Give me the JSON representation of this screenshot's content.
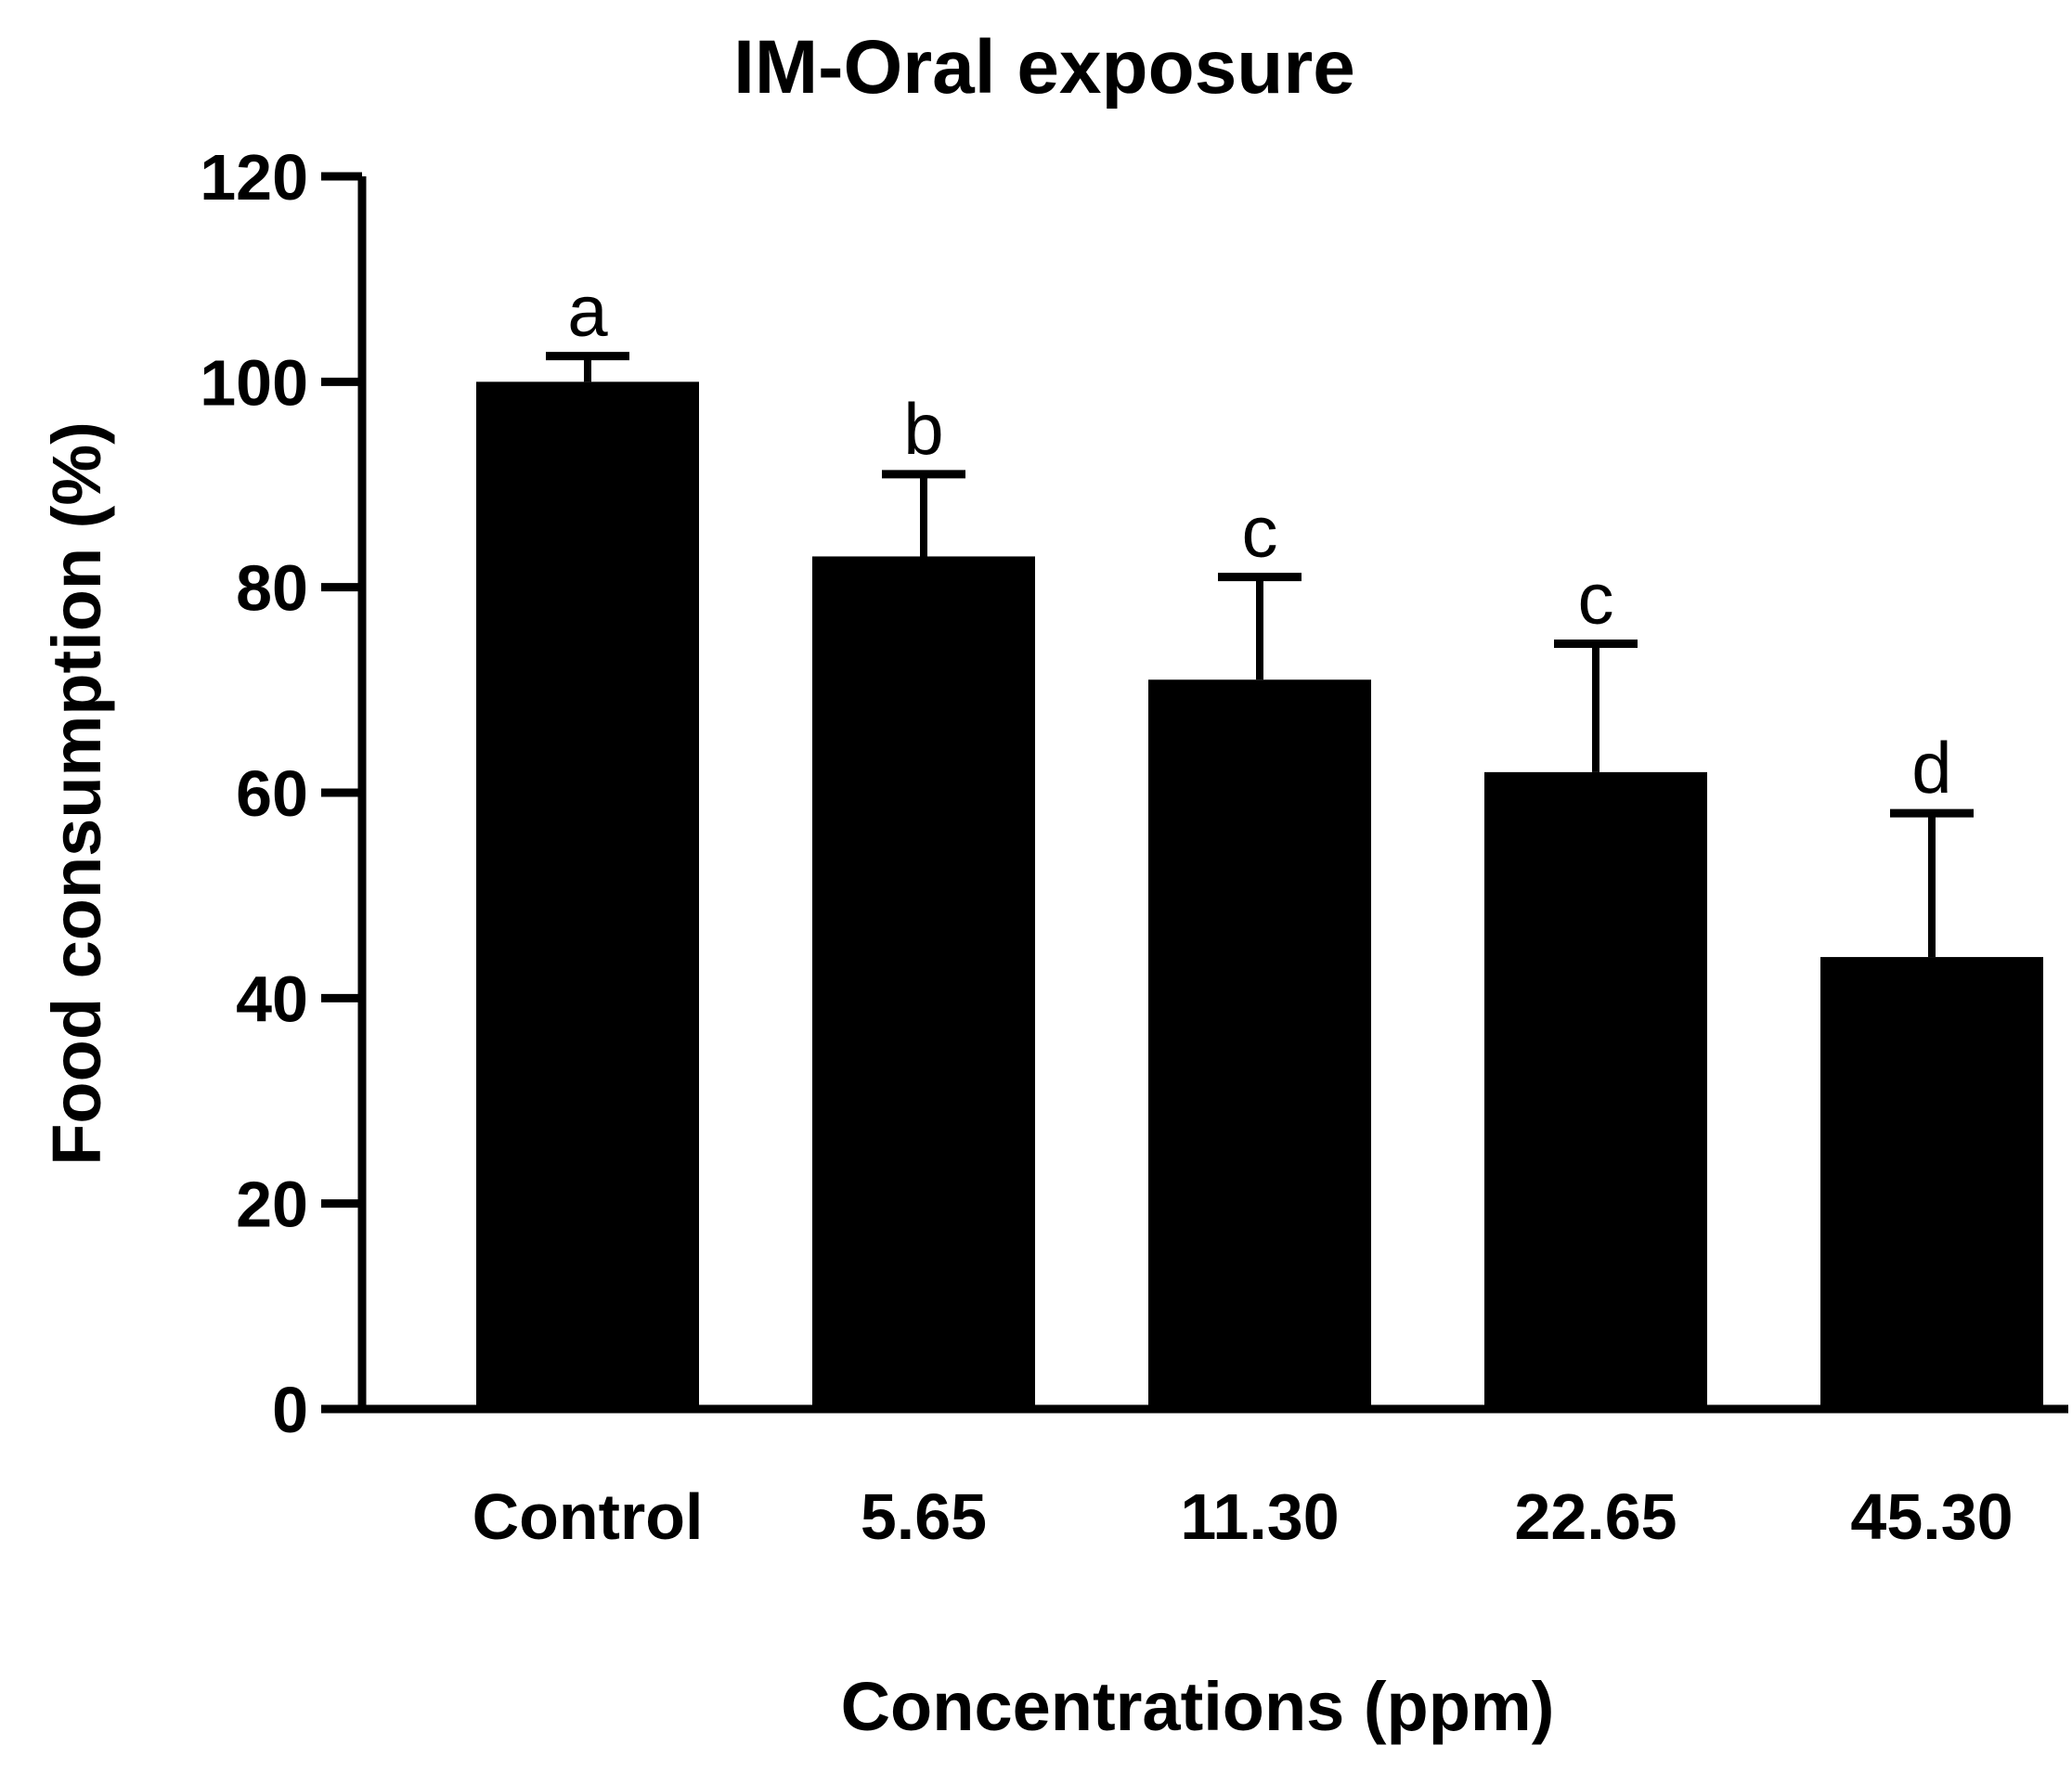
{
  "chart_data": {
    "type": "bar",
    "title": "IM-Oral exposure",
    "xlabel": "Concentrations (ppm)",
    "ylabel": "Food consumption (%)",
    "categories": [
      "Control",
      "5.65",
      "11.30",
      "22.65",
      "45.30"
    ],
    "values": [
      100,
      83,
      71,
      62,
      44
    ],
    "error_upper": [
      102.5,
      91,
      81,
      74.5,
      58
    ],
    "significance_labels": [
      "a",
      "b",
      "c",
      "c",
      "d"
    ],
    "ylim": [
      0,
      120
    ],
    "yticks": [
      "0",
      "20",
      "40",
      "60",
      "80",
      "100",
      "120"
    ],
    "ytick_values": [
      0,
      20,
      40,
      60,
      80,
      100,
      120
    ],
    "grid": false,
    "bar_color": "#000000"
  }
}
